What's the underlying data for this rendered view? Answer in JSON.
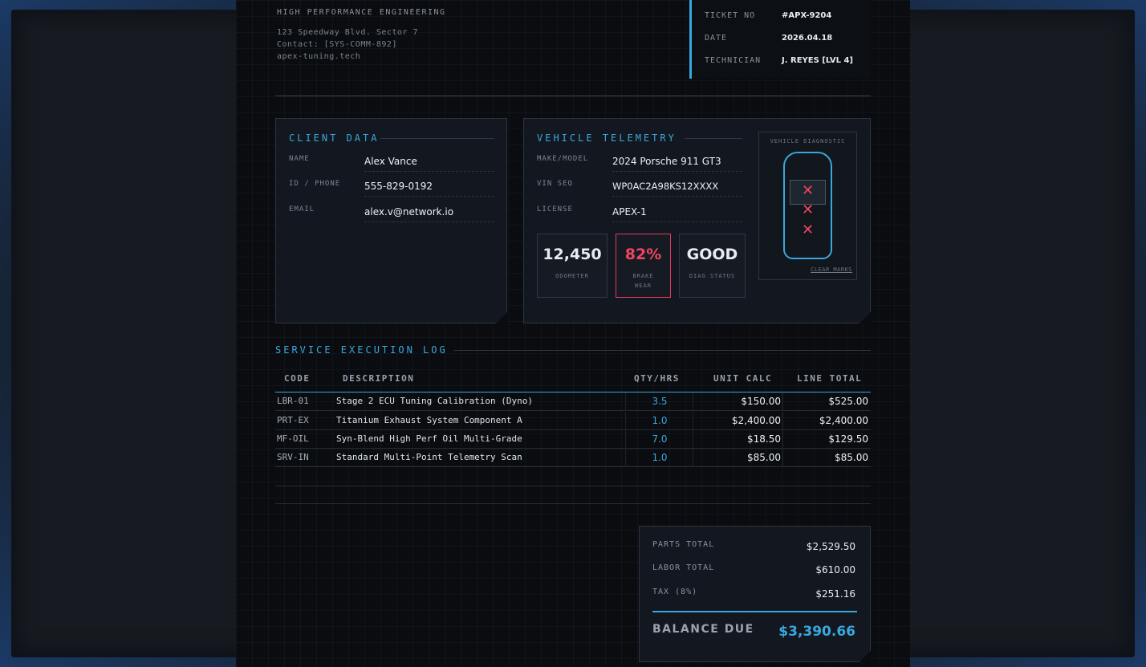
{
  "company": {
    "name": "HIGH PERFORMANCE ENGINEERING",
    "address": "123 Speedway Blvd. Sector 7",
    "contact": "Contact: [SYS-COMM-892]",
    "website": "apex-tuning.tech"
  },
  "ticket": {
    "ticket_no_label": "TICKET NO",
    "ticket_no": "#APX-9204",
    "date_label": "DATE",
    "date": "2026.04.18",
    "technician_label": "TECHNICIAN",
    "technician": "J. REYES [LVL 4]"
  },
  "client": {
    "title": "CLIENT DATA",
    "name_label": "NAME",
    "name": "Alex Vance",
    "phone_label": "ID / PHONE",
    "phone": "555-829-0192",
    "email_label": "EMAIL",
    "email": "alex.v@network.io"
  },
  "vehicle": {
    "title": "VEHICLE TELEMETRY",
    "make_label": "MAKE/MODEL",
    "make": "2024 Porsche 911 GT3",
    "vin_label": "VIN SEQ",
    "vin": "WP0AC2A98KS12XXXX",
    "license_label": "LICENSE",
    "license": "APEX-1",
    "stats": [
      {
        "value": "12,450",
        "label": "ODOMETER"
      },
      {
        "value": "82%",
        "label": "BRAKE WEAR"
      },
      {
        "value": "GOOD",
        "label": "DIAG STATUS"
      }
    ],
    "diagnostic": {
      "title": "VEHICLE DIAGNOSTIC",
      "mark_symbol": "✕",
      "clear_label": "CLEAR MARKS"
    }
  },
  "log": {
    "title": "SERVICE EXECUTION LOG",
    "headers": {
      "code": "CODE",
      "description": "DESCRIPTION",
      "qty": "QTY/HRS",
      "unit": "UNIT CALC",
      "total": "LINE TOTAL"
    },
    "rows": [
      {
        "code": "LBR-01",
        "description": "Stage 2 ECU Tuning Calibration (Dyno)",
        "qty": "3.5",
        "unit": "$150.00",
        "total": "$525.00"
      },
      {
        "code": "PRT-EX",
        "description": "Titanium Exhaust System Component A",
        "qty": "1.0",
        "unit": "$2,400.00",
        "total": "$2,400.00"
      },
      {
        "code": "MF-OIL",
        "description": "Syn-Blend High Perf Oil Multi-Grade",
        "qty": "7.0",
        "unit": "$18.50",
        "total": "$129.50"
      },
      {
        "code": "SRV-IN",
        "description": "Standard Multi-Point Telemetry Scan",
        "qty": "1.0",
        "unit": "$85.00",
        "total": "$85.00"
      }
    ]
  },
  "totals": {
    "parts_label": "PARTS TOTAL",
    "parts": "$2,529.50",
    "labor_label": "LABOR TOTAL",
    "labor": "$610.00",
    "tax_label": "TAX (8%)",
    "tax": "$251.16",
    "balance_label": "BALANCE DUE",
    "balance": "$3,390.66"
  },
  "colors": {
    "accent": "#3aa7de",
    "alert": "#f0445f",
    "background": "#0a0c10"
  }
}
